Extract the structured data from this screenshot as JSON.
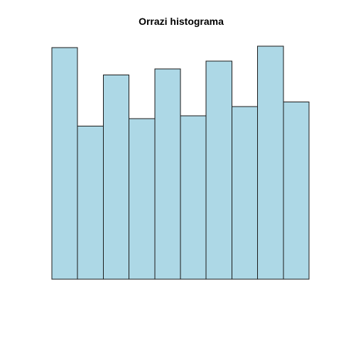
{
  "chart_data": {
    "type": "bar",
    "title": "Orrazi histograma",
    "xlabel": "",
    "ylabel": "",
    "bar_color": "#add8e6",
    "border_color": "#1a1a1a",
    "axes_visible": false,
    "grid": false,
    "values": [
      1.53,
      1.01,
      1.35,
      1.06,
      1.39,
      1.08,
      1.44,
      1.14,
      1.54,
      1.17
    ],
    "ylim": [
      0,
      1.6
    ]
  }
}
